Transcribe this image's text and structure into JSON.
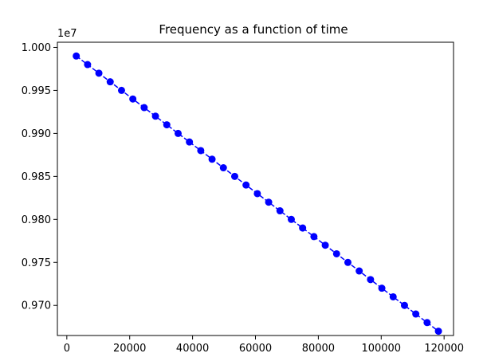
{
  "chart_data": {
    "type": "line",
    "title": "Frequency as a function of time",
    "xlabel": "",
    "ylabel": "",
    "y_offset_label": "1e7",
    "xlim": [
      -3000,
      123000
    ],
    "ylim": [
      9665000,
      10006000
    ],
    "x_ticks": [
      {
        "value": 0,
        "label": "0"
      },
      {
        "value": 20000,
        "label": "20000"
      },
      {
        "value": 40000,
        "label": "40000"
      },
      {
        "value": 60000,
        "label": "60000"
      },
      {
        "value": 80000,
        "label": "80000"
      },
      {
        "value": 100000,
        "label": "100000"
      },
      {
        "value": 120000,
        "label": "120000"
      }
    ],
    "y_ticks": [
      {
        "value": 9700000,
        "label": "0.970"
      },
      {
        "value": 9750000,
        "label": "0.975"
      },
      {
        "value": 9800000,
        "label": "0.980"
      },
      {
        "value": 9850000,
        "label": "0.985"
      },
      {
        "value": 9900000,
        "label": "0.990"
      },
      {
        "value": 9950000,
        "label": "0.995"
      },
      {
        "value": 10000000,
        "label": "1.000"
      }
    ],
    "grid": false,
    "series": [
      {
        "color": "#0000ff",
        "line_style": "dashed",
        "marker": "circle",
        "x": [
          3000,
          6600,
          10200,
          13800,
          17400,
          21000,
          24600,
          28200,
          31800,
          35400,
          39000,
          42600,
          46200,
          49800,
          53400,
          57000,
          60600,
          64200,
          67800,
          71400,
          75000,
          78600,
          82200,
          85800,
          89400,
          93000,
          96600,
          100200,
          103800,
          107400,
          111000,
          114600,
          118200
        ],
        "y": [
          9990000,
          9980000,
          9970000,
          9960000,
          9950000,
          9940000,
          9930000,
          9920000,
          9910000,
          9900000,
          9890000,
          9880000,
          9870000,
          9860000,
          9850000,
          9840000,
          9830000,
          9820000,
          9810000,
          9800000,
          9790000,
          9780000,
          9770000,
          9760000,
          9750000,
          9740000,
          9730000,
          9720000,
          9710000,
          9700000,
          9690000,
          9680000,
          9670000
        ]
      }
    ]
  }
}
